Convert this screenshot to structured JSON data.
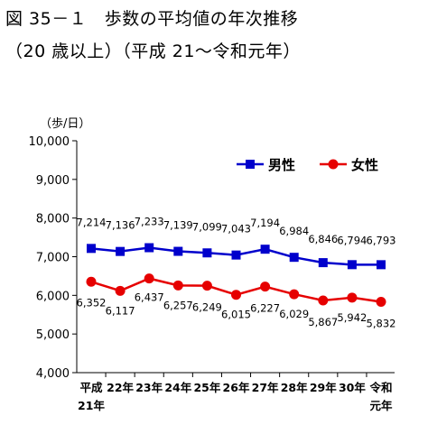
{
  "title": "図 35－１　歩数の平均値の年次推移",
  "subtitle": "（20 歳以上）（平成 21～令和元年）",
  "chart_data": {
    "type": "line",
    "ylabel": "（歩/日）",
    "ylim": [
      4000,
      10000
    ],
    "yticks": [
      "4,000",
      "5,000",
      "6,000",
      "7,000",
      "8,000",
      "9,000",
      "10,000"
    ],
    "categories": [
      [
        "平成",
        "21年"
      ],
      [
        "22年"
      ],
      [
        "23年"
      ],
      [
        "24年"
      ],
      [
        "25年"
      ],
      [
        "26年"
      ],
      [
        "27年"
      ],
      [
        "28年"
      ],
      [
        "29年"
      ],
      [
        "30年"
      ],
      [
        "令和",
        "元年"
      ]
    ],
    "series": [
      {
        "name": "男性",
        "color": "#0000cc",
        "marker": "square",
        "values": [
          7214,
          7136,
          7233,
          7139,
          7099,
          7043,
          7194,
          6984,
          6846,
          6794,
          6793
        ],
        "labels": [
          "7,214",
          "7,136",
          "7,233",
          "7,139",
          "7,099",
          "7,043",
          "7,194",
          "6,984",
          "6,846",
          "6,794",
          "6,793"
        ]
      },
      {
        "name": "女性",
        "color": "#e60000",
        "marker": "circle",
        "values": [
          6352,
          6117,
          6437,
          6257,
          6249,
          6015,
          6227,
          6029,
          5867,
          5942,
          5832
        ],
        "labels": [
          "6,352",
          "6,117",
          "6,437",
          "6,257",
          "6,249",
          "6,015",
          "6,227",
          "6,029",
          "5,867",
          "5,942",
          "5,832"
        ]
      }
    ],
    "grid": false,
    "legend": "top-right"
  }
}
